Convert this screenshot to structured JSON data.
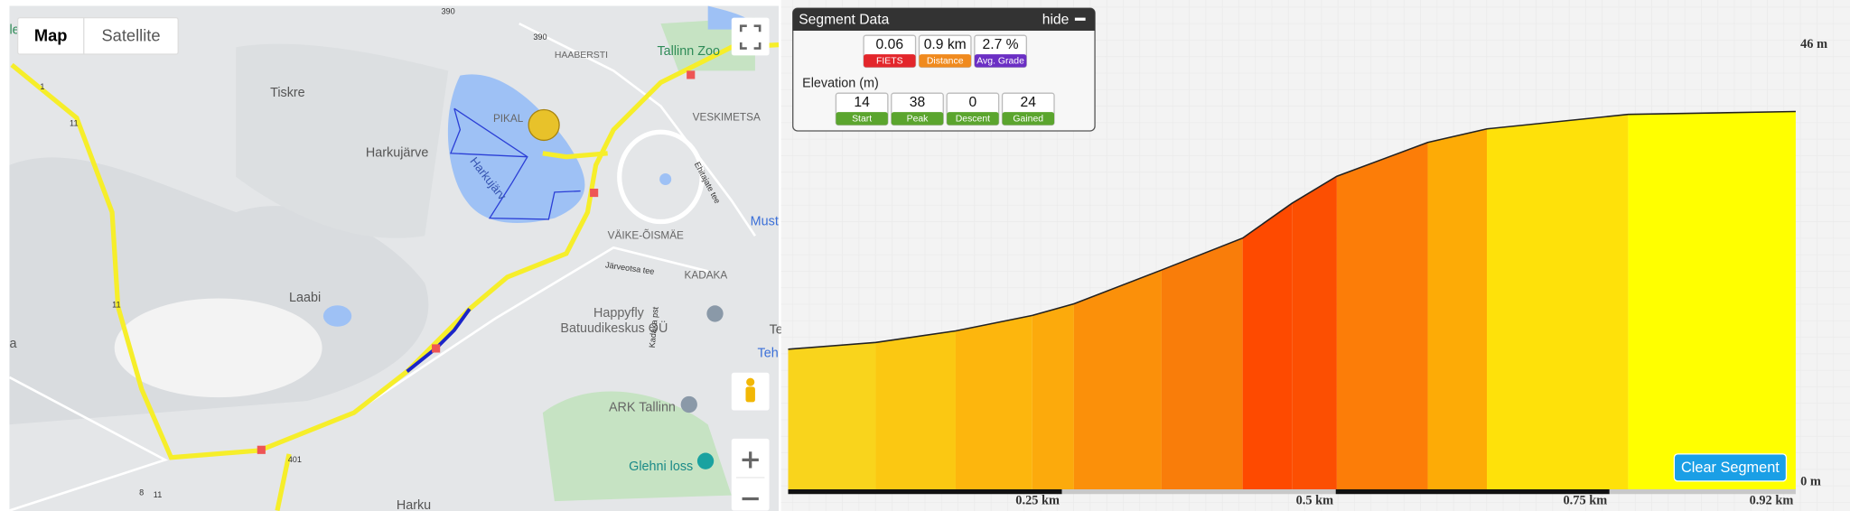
{
  "map": {
    "buttons": [
      "Map",
      "Satellite"
    ],
    "places": [
      "Tiskre",
      "Harkujärve",
      "PIKAL",
      "VESKIMETSA",
      "HAABERSTI",
      "Tallinn Zoo",
      "VÄIKE-ÕISMÄE",
      "KADAKA",
      "Laabi",
      "Happyfly",
      "Batuudikeskus OÜ",
      "ARK Tallinn",
      "Glehni loss",
      "Harku",
      "Must",
      "Ehitajate tee",
      "Järveotsa tee",
      "Kadaka pst",
      "Harkujärv",
      "Te",
      "Teh",
      "a",
      "le"
    ],
    "road_numbers": [
      "390",
      "390",
      "1",
      "11",
      "11",
      "11",
      "401",
      "8"
    ]
  },
  "segment_panel": {
    "title": "Segment Data",
    "hide": "hide",
    "stats": [
      {
        "value": "0.06",
        "label": "FIETS",
        "color": "#e3262b"
      },
      {
        "value": "0.9 km",
        "label": "Distance",
        "color": "#f08a1e"
      },
      {
        "value": "2.7 %",
        "label": "Avg. Grade",
        "color": "#6b2fc4"
      }
    ],
    "elevation_heading": "Elevation (m)",
    "elevation_stats": [
      {
        "value": 14,
        "label": "Start"
      },
      {
        "value": 38,
        "label": "Peak"
      },
      {
        "value": 0,
        "label": "Descent"
      },
      {
        "value": 24,
        "label": "Gained"
      }
    ],
    "elevation_color": "#5ba52e"
  },
  "profile": {
    "distance": [
      0,
      0.08,
      0.153,
      0.223,
      0.261,
      0.341,
      0.415,
      0.46,
      0.501,
      0.584,
      0.638,
      0.767,
      0.92
    ],
    "elevation": [
      14.5,
      15.2,
      16.4,
      18.0,
      19.2,
      22.7,
      26.0,
      29.6,
      32.4,
      35.9,
      37.3,
      38.8,
      39.1
    ],
    "band_colors": [
      "#f9d41c",
      "#fbc812",
      "#fdb60d",
      "#fcaa0c",
      "#fb900a",
      "#f97d0a",
      "#fe4a00",
      "#fc4f02",
      "#fc7d08",
      "#fdab06",
      "#fee10a",
      "#ffff00"
    ],
    "xlim": [
      0,
      0.92
    ],
    "ylim": [
      0,
      46
    ],
    "xticks": [
      {
        "value": 0.25,
        "label": "0.25 km"
      },
      {
        "value": 0.5,
        "label": "0.5 km"
      },
      {
        "value": 0.75,
        "label": "0.75 km"
      },
      {
        "value": 0.92,
        "label": "0.92 km"
      }
    ],
    "yticks": [
      {
        "value": 46,
        "label": "46 m"
      },
      {
        "value": 0,
        "label": "0 m"
      }
    ],
    "button": "Clear Segment"
  }
}
